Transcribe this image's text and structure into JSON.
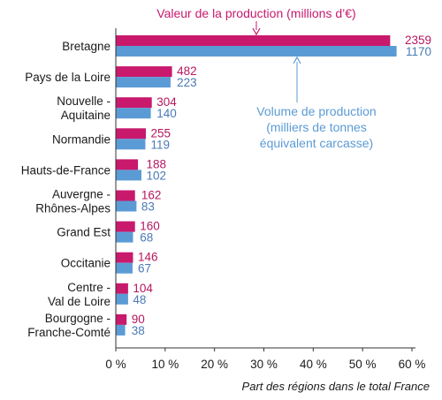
{
  "chart_data": {
    "type": "bar",
    "orientation": "horizontal",
    "categories": [
      [
        "Bretagne"
      ],
      [
        "Pays de la Loire"
      ],
      [
        "Nouvelle -",
        "Aquitaine"
      ],
      [
        "Normandie"
      ],
      [
        "Hauts-de-France"
      ],
      [
        "Auvergne -",
        "Rhônes-Alpes"
      ],
      [
        "Grand Est"
      ],
      [
        "Occitanie"
      ],
      [
        "Centre -",
        "Val de Loire"
      ],
      [
        "Bourgogne -",
        "Franche-Comté"
      ]
    ],
    "series": [
      {
        "name": "Valeur de la production (millions d’€)",
        "color": "#c8196d",
        "values": [
          55.5,
          11.3,
          7.2,
          6.0,
          4.4,
          3.8,
          3.8,
          3.4,
          2.4,
          2.1
        ],
        "labels": [
          "2359",
          "482",
          "304",
          "255",
          "188",
          "162",
          "160",
          "146",
          "104",
          "90"
        ]
      },
      {
        "name_lines": [
          "Volume de production",
          "(milliers de tonnes",
          "équivalent carcasse)"
        ],
        "color": "#5b9bd5",
        "values": [
          56.8,
          11.0,
          7.0,
          5.9,
          5.1,
          4.1,
          3.4,
          3.3,
          2.4,
          1.8
        ],
        "labels": [
          "1170",
          "223",
          "140",
          "119",
          "102",
          "83",
          "68",
          "67",
          "48",
          "38"
        ]
      }
    ],
    "xlabel": "Part des régions dans le total France",
    "xlim": [
      0,
      60
    ],
    "xticks": [
      "0 %",
      "10 %",
      "20 %",
      "30 %",
      "40 %",
      "50 %",
      "60 %"
    ],
    "xtick_values": [
      0,
      10,
      20,
      30,
      40,
      50,
      60
    ],
    "grid": false,
    "value_label_colors": {
      "a": "#b5175f",
      "b": "#4a7ab5"
    }
  }
}
